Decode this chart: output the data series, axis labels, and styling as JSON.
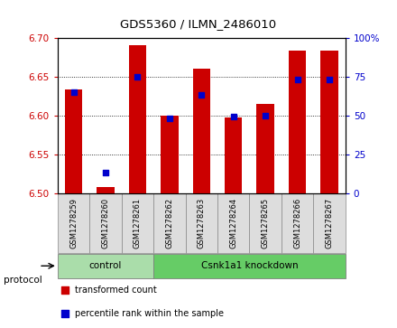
{
  "title": "GDS5360 / ILMN_2486010",
  "samples": [
    "GSM1278259",
    "GSM1278260",
    "GSM1278261",
    "GSM1278262",
    "GSM1278263",
    "GSM1278264",
    "GSM1278265",
    "GSM1278266",
    "GSM1278267"
  ],
  "transformed_counts": [
    6.634,
    6.508,
    6.69,
    6.6,
    6.66,
    6.597,
    6.615,
    6.683,
    6.683
  ],
  "percentile_ranks": [
    65,
    13,
    75,
    48,
    63,
    49,
    50,
    73,
    73
  ],
  "ylim_left": [
    6.5,
    6.7
  ],
  "ylim_right": [
    0,
    100
  ],
  "yticks_left": [
    6.5,
    6.55,
    6.6,
    6.65,
    6.7
  ],
  "yticks_right": [
    0,
    25,
    50,
    75,
    100
  ],
  "bar_color": "#cc0000",
  "dot_color": "#0000cc",
  "bar_bottom": 6.5,
  "groups": [
    {
      "label": "control",
      "indices": [
        0,
        1,
        2
      ],
      "color": "#aaddaa"
    },
    {
      "label": "Csnk1a1 knockdown",
      "indices": [
        3,
        4,
        5,
        6,
        7,
        8
      ],
      "color": "#66cc66"
    }
  ],
  "protocol_label": "protocol",
  "legend_items": [
    {
      "label": "transformed count",
      "color": "#cc0000"
    },
    {
      "label": "percentile rank within the sample",
      "color": "#0000cc"
    }
  ],
  "bg_color": "#ffffff",
  "plot_bg": "#ffffff",
  "tick_label_color_left": "#cc0000",
  "tick_label_color_right": "#0000cc",
  "bar_width": 0.55,
  "dot_size": 22,
  "xtick_box_color": "#dddddd",
  "separator_color": "#888888",
  "right_ytick_labels": [
    "0",
    "25",
    "50",
    "75",
    "100%"
  ]
}
